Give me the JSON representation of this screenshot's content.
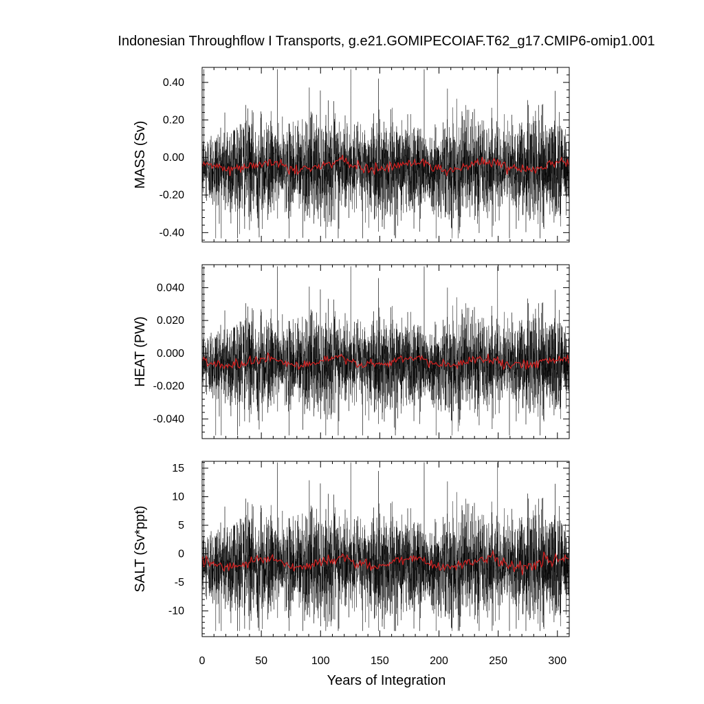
{
  "chart_data": {
    "type": "line",
    "title": "Indonesian Throughflow I Transports, g.e21.GOMIPECOIAF.T62_g17.CMIP6-omip1.001",
    "xlabel": "Years of Integration",
    "xlim": [
      0,
      310
    ],
    "x_ticks": [
      0,
      50,
      100,
      150,
      200,
      250,
      300
    ],
    "x_tick_labels": [
      "0",
      "50",
      "100",
      "150",
      "200",
      "250",
      "300"
    ],
    "forcing_cycle_years": 62,
    "colors": {
      "monthly": "#000000",
      "annual_mean": "#d62020"
    },
    "panels": [
      {
        "id": "mass",
        "ylabel": "MASS (Sv)",
        "ylim": [
          -0.45,
          0.48
        ],
        "y_ticks": [
          -0.4,
          -0.2,
          0.0,
          0.2,
          0.4
        ],
        "y_tick_labels": [
          "-0.40",
          "-0.20",
          "0.00",
          "0.20",
          "0.40"
        ],
        "series": [
          {
            "kind": "monthly",
            "mean": -0.055,
            "spread": 0.11,
            "max": 0.47,
            "min": -0.43
          },
          {
            "kind": "annual_mean",
            "cycle_values": [
              -0.03,
              -0.05,
              -0.06,
              -0.065,
              -0.06,
              -0.05,
              -0.035,
              -0.03,
              -0.02,
              -0.03
            ]
          }
        ]
      },
      {
        "id": "heat",
        "ylabel": "HEAT (PW)",
        "ylim": [
          -0.052,
          0.054
        ],
        "y_ticks": [
          -0.04,
          -0.02,
          0.0,
          0.02,
          0.04
        ],
        "y_tick_labels": [
          "-0.040",
          "-0.020",
          "0.000",
          "0.020",
          "0.040"
        ],
        "series": [
          {
            "kind": "monthly",
            "mean": -0.006,
            "spread": 0.012,
            "max": 0.053,
            "min": -0.05
          },
          {
            "kind": "annual_mean",
            "cycle_values": [
              -0.004,
              -0.006,
              -0.007,
              -0.0075,
              -0.007,
              -0.006,
              -0.004,
              -0.0035,
              -0.0025,
              -0.0035
            ]
          }
        ]
      },
      {
        "id": "salt",
        "ylabel": "SALT (Sv*ppt)",
        "ylim": [
          -14.5,
          16.2
        ],
        "y_ticks": [
          -10,
          -5,
          0,
          5,
          10,
          15
        ],
        "y_tick_labels": [
          "-10",
          "-5",
          "0",
          "5",
          "10",
          "15"
        ],
        "series": [
          {
            "kind": "monthly",
            "mean": -1.9,
            "spread": 3.8,
            "max": 16,
            "min": -13.5
          },
          {
            "kind": "annual_mean",
            "cycle_values": [
              -1.0,
              -1.7,
              -2.1,
              -2.3,
              -2.1,
              -1.7,
              -1.2,
              -1.0,
              -0.7,
              -1.0
            ]
          }
        ]
      }
    ]
  }
}
